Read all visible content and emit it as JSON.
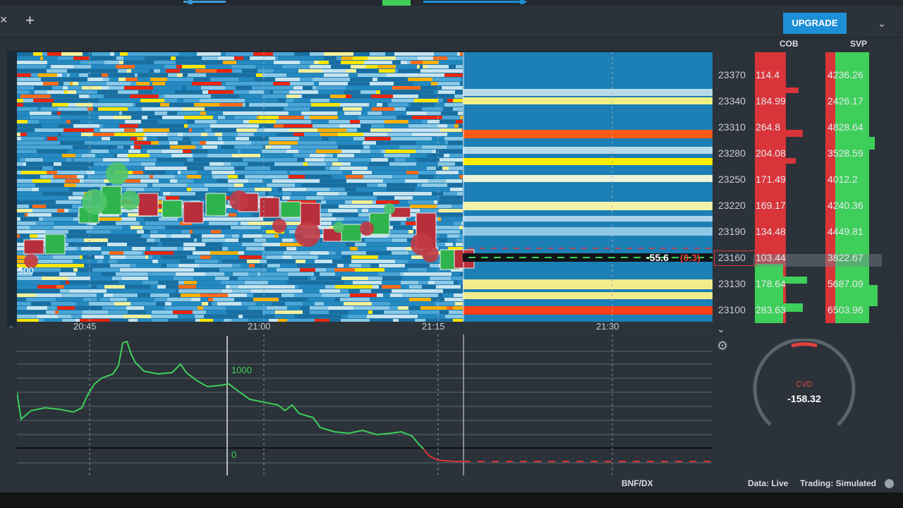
{
  "header": {
    "upgrade_label": "UPGRADE",
    "close_tab": "×",
    "add_tab": "+"
  },
  "ladder": {
    "col_cob": "COB",
    "col_svp": "SVP",
    "rows": [
      {
        "price": "23370",
        "cob": "114.4",
        "svp": "4236.26"
      },
      {
        "price": "23340",
        "cob": "184.99",
        "svp": "2426.17"
      },
      {
        "price": "23310",
        "cob": "264.8",
        "svp": "4828.64"
      },
      {
        "price": "23280",
        "cob": "204.08",
        "svp": "3528.59"
      },
      {
        "price": "23250",
        "cob": "171.49",
        "svp": "4012.2"
      },
      {
        "price": "23220",
        "cob": "169.17",
        "svp": "4240.36"
      },
      {
        "price": "23190",
        "cob": "134.48",
        "svp": "4449.81"
      },
      {
        "price": "23160",
        "cob": "103.44",
        "svp": "3822.67"
      },
      {
        "price": "23130",
        "cob": "178.64",
        "svp": "5687.09"
      },
      {
        "price": "23100",
        "cob": "283.63",
        "svp": "6503.96"
      }
    ]
  },
  "chart": {
    "time_labels": [
      "20:45",
      "21:00",
      "21:15",
      "21:30"
    ],
    "volume_label": "500",
    "last_delta": "-55.6",
    "last_delta_paren": "(0.3)"
  },
  "lower": {
    "level_1000": "1000",
    "level_0": "0"
  },
  "cvd": {
    "label": "CVD",
    "value": "-158.32"
  },
  "status": {
    "symbol": "BNF/DX",
    "data": "Data: Live",
    "trading": "Trading: Simulated"
  },
  "colors": {
    "accent": "#1d8fd6",
    "buy": "#3ecf5a",
    "sell": "#d9343a"
  }
}
